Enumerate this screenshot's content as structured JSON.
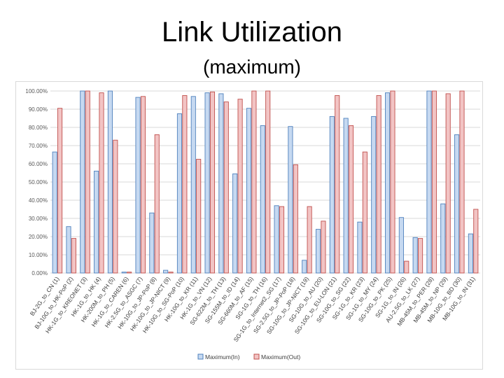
{
  "slide": {
    "title": "Link Utilization",
    "subtitle": "(maximum)"
  },
  "colors": {
    "in_fill": "#c6d9f1",
    "in_stroke": "#4f81bd",
    "out_fill": "#f2c4c4",
    "out_stroke": "#c0504d",
    "grid": "#d9d9d9"
  },
  "chart_data": {
    "type": "bar",
    "title": "",
    "xlabel": "",
    "ylabel": "",
    "ylim": [
      0,
      100
    ],
    "yticks": [
      "0.00%",
      "10.00%",
      "20.00%",
      "30.00%",
      "40.00%",
      "50.00%",
      "60.00%",
      "70.00%",
      "80.00%",
      "90.00%",
      "100.00%"
    ],
    "grid": true,
    "legend_position": "bottom",
    "categories": [
      "BJ-2G_to_CN (1)",
      "BJ-10G_to_HK-PoP (2)",
      "HK-1G_to_KREONET (3)",
      "HK-1G_to_HK (4)",
      "HK-200M_to_PH (5)",
      "HK-1G_to_CAREN (6)",
      "HK-2.5G_to_ASGC (7)",
      "HK-10G_to_JP-PoP (8)",
      "HK-10G_to_JP-NICT (9)",
      "HK-10G_to_SG-PoP (10)",
      "HK-10G_to_KR (11)",
      "HK-1G_to_VN (12)",
      "SG-622M_to_TH (13)",
      "SG-155M_to_ID (14)",
      "SG-660M_to_AF (15)",
      "SG-1G_to_TH (16)",
      "SG-1G_to_Internet2_SG (17)",
      "SG-2.5G_to_JP-PoP (18)",
      "SG-10G_to_JP-NICT (19)",
      "SG-10G_to_AU (20)",
      "SG-10G_to_EU-LON (21)",
      "SG-10G_to_SG (22)",
      "SG-1G_to_KR (23)",
      "SG-1G_to_MY (24)",
      "SG-10G_to_PK (25)",
      "SG-1G_to_IN (26)",
      "AU-2.5G_to_LK (27)",
      "MB-45M_to_PER (28)",
      "MB-45M_to_NP (29)",
      "MB-10G_to_BD (30)",
      "MB-10G_to_IN (31)"
    ],
    "series": [
      {
        "name": "Maximum(In)",
        "values": [
          66.5,
          25.5,
          100,
          56,
          100,
          0.5,
          96.5,
          33,
          1.5,
          87.5,
          97,
          99,
          98.5,
          54.5,
          90.5,
          81,
          37,
          80.5,
          7,
          24,
          86,
          85,
          28,
          86,
          99,
          30.5,
          19.5,
          100,
          38,
          76,
          21.5
        ]
      },
      {
        "name": "Maximum(Out)",
        "values": [
          90.5,
          19,
          100,
          99,
          73,
          0.5,
          97,
          76,
          0.5,
          97.5,
          62.5,
          99.5,
          94,
          95.5,
          100,
          100,
          36.5,
          59.5,
          36.5,
          28.5,
          97.5,
          81,
          66.5,
          97.5,
          100,
          6.5,
          19,
          100,
          98.5,
          100,
          35
        ]
      }
    ]
  }
}
